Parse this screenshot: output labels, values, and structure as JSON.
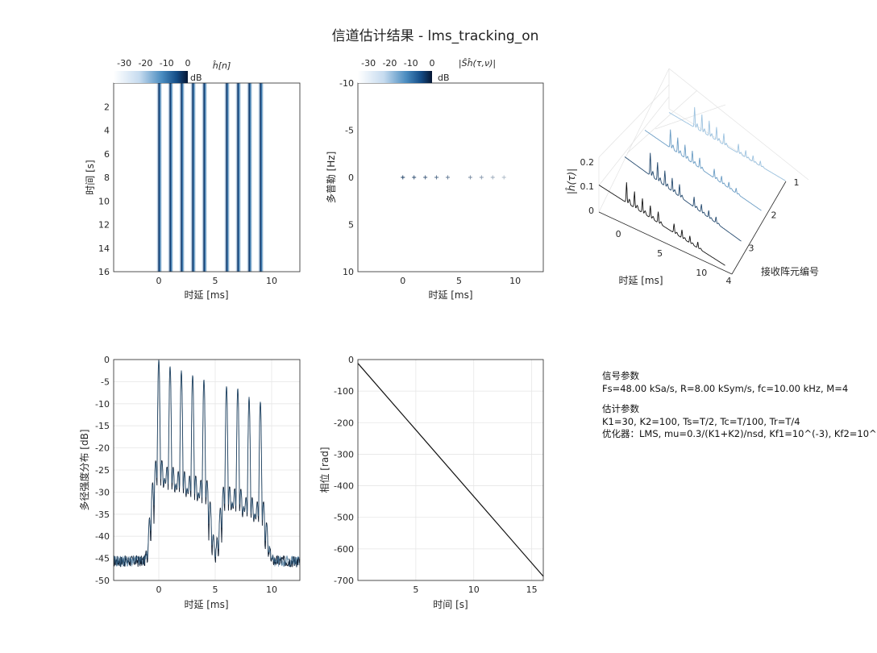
{
  "figure": {
    "title": "信道估计结果 - lms_tracking_on"
  },
  "chart_data": [
    {
      "id": "h_tap_image",
      "type": "heatmap",
      "title": "ĥ[n]",
      "xlabel": "时延 [ms]",
      "ylabel": "时间 [s]",
      "xlim": [
        -4,
        12.5
      ],
      "ylim": [
        0,
        16
      ],
      "xticks": [
        0,
        5,
        10
      ],
      "yticks": [
        2,
        4,
        6,
        8,
        10,
        12,
        14,
        16
      ],
      "tap_delays_ms": [
        0,
        1,
        2,
        3,
        4,
        6,
        7,
        8,
        9
      ],
      "colorbar": {
        "label": "dB",
        "ticks": [
          -30,
          -20,
          -10,
          0
        ],
        "range": [
          -35,
          0
        ]
      }
    },
    {
      "id": "scattering_function",
      "type": "scatter",
      "title": "|Ŝĥ(τ,ν)|",
      "xlabel": "时延 [ms]",
      "ylabel": "多普勒 [Hz]",
      "xlim": [
        -4,
        12.5
      ],
      "ylim": [
        -10,
        10
      ],
      "xticks": [
        0,
        5,
        10
      ],
      "yticks": [
        -10,
        -5,
        0,
        5,
        10
      ],
      "points": {
        "x": [
          0,
          1,
          2,
          3,
          4,
          6,
          7,
          8,
          9
        ],
        "y": [
          0,
          0,
          0,
          0,
          0,
          0,
          0,
          0,
          0
        ]
      },
      "colorbar": {
        "label": "dB",
        "ticks": [
          -30,
          -20,
          -10,
          0
        ],
        "range": [
          -35,
          0
        ]
      }
    },
    {
      "id": "impulse_response_3d",
      "type": "line",
      "zlabel": "|ĥ(τ)|",
      "xlabel": "时延 [ms]",
      "ylabel": "接收阵元编号",
      "xticks": [
        0,
        5,
        10
      ],
      "elements": [
        1,
        2,
        3,
        4
      ],
      "zticks": [
        0,
        0.1,
        0.2
      ],
      "series": [
        {
          "name": "1",
          "peaks": [
            0.2,
            0.17,
            0.15,
            0.13,
            0.11,
            0.09,
            0.07,
            0.06,
            0.05
          ]
        },
        {
          "name": "2",
          "peaks": [
            0.18,
            0.15,
            0.13,
            0.12,
            0.1,
            0.09,
            0.07,
            0.06,
            0.05
          ]
        },
        {
          "name": "3",
          "peaks": [
            0.22,
            0.18,
            0.15,
            0.13,
            0.12,
            0.1,
            0.08,
            0.07,
            0.06
          ]
        },
        {
          "name": "4",
          "peaks": [
            0.2,
            0.16,
            0.14,
            0.12,
            0.11,
            0.09,
            0.08,
            0.07,
            0.06
          ]
        }
      ],
      "tap_delays_ms": [
        0,
        1,
        2,
        3,
        4,
        6,
        7,
        8,
        9
      ]
    },
    {
      "id": "multipath_intensity",
      "type": "line",
      "xlabel": "时延 [ms]",
      "ylabel": "多径强度分布 [dB]",
      "xlim": [
        -4,
        12.5
      ],
      "ylim": [
        -50,
        0
      ],
      "xticks": [
        0,
        5,
        10
      ],
      "yticks": [
        0,
        -5,
        -10,
        -15,
        -20,
        -25,
        -30,
        -35,
        -40,
        -45,
        -50
      ],
      "grid": true,
      "noise_floor_db": -45.5,
      "tap_delays_ms": [
        0,
        1,
        2,
        3,
        4,
        6,
        7,
        8,
        9
      ],
      "tap_peaks_db": [
        0,
        -1.5,
        -2.5,
        -3.5,
        -4.5,
        -6,
        -6.5,
        -8.5,
        -9.5
      ]
    },
    {
      "id": "phase",
      "type": "line",
      "xlabel": "时间 [s]",
      "ylabel": "相位 [rad]",
      "xlim": [
        0,
        16
      ],
      "ylim": [
        -700,
        0
      ],
      "xticks": [
        5,
        10,
        15
      ],
      "yticks": [
        0,
        -100,
        -200,
        -300,
        -400,
        -500,
        -600,
        -700
      ],
      "grid": true,
      "x": [
        0,
        16
      ],
      "y": [
        -12,
        -687
      ]
    }
  ],
  "params": {
    "signal_heading": "信号参数",
    "signal_line": "Fs=48.00 kSa/s, R=8.00 kSym/s, fc=10.00 kHz, M=4",
    "est_heading": "估计参数",
    "est_line": "K1=30, K2=100, Ts=T/2, Tc=T/100, Tr=T/4",
    "opt_line": "优化器：LMS, mu=0.3/(K1+K2)/nsd, Kf1=10^(-3), Kf2=10^"
  }
}
